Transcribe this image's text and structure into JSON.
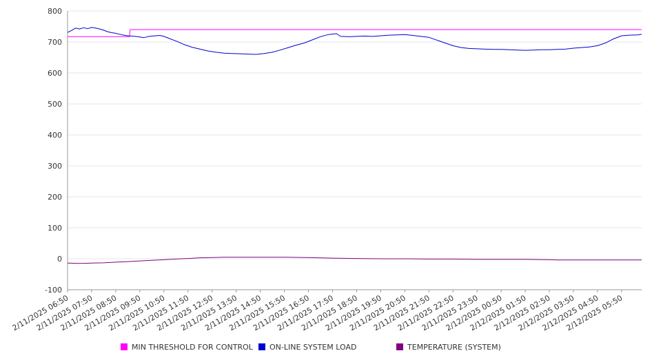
{
  "chart_data": {
    "type": "line",
    "ylim": [
      -100,
      800
    ],
    "y_ticks": [
      "-100",
      "0",
      "100",
      "200",
      "300",
      "400",
      "500",
      "600",
      "700",
      "800"
    ],
    "x_ticks": [
      "2/11/2025 06:50",
      "2/11/2025 07:50",
      "2/11/2025 08:50",
      "2/11/2025 09:50",
      "2/11/2025 10:50",
      "2/11/2025 11:50",
      "2/11/2025 12:50",
      "2/11/2025 13:50",
      "2/11/2025 14:50",
      "2/11/2025 15:50",
      "2/11/2025 16:50",
      "2/11/2025 17:50",
      "2/11/2025 18:50",
      "2/11/2025 19:50",
      "2/11/2025 20:50",
      "2/11/2025 21:50",
      "2/11/2025 22:50",
      "2/11/2025 23:50",
      "2/12/2025 00:50",
      "2/12/2025 01:50",
      "2/12/2025 02:50",
      "2/12/2025 03:50",
      "2/12/2025 04:50",
      "2/12/2025 05:50"
    ],
    "x_end": "2/12/2025 06:40",
    "grid": true,
    "legend_position": "bottom",
    "series": [
      {
        "name": "MIN THRESHOLD FOR CONTROL",
        "color": "#ff00ff",
        "x": [
          "2/11/2025 06:50",
          "2/11/2025 09:24",
          "2/11/2025 09:26",
          "2/12/2025 06:40"
        ],
        "y": [
          717,
          717,
          740,
          740
        ]
      },
      {
        "name": "ON-LINE SYSTEM LOAD",
        "color": "#0000cc",
        "x": [
          "2/11/2025 06:50",
          "2/11/2025 07:00",
          "2/11/2025 07:10",
          "2/11/2025 07:20",
          "2/11/2025 07:30",
          "2/11/2025 07:40",
          "2/11/2025 07:50",
          "2/11/2025 08:00",
          "2/11/2025 08:10",
          "2/11/2025 08:20",
          "2/11/2025 08:30",
          "2/11/2025 08:40",
          "2/11/2025 08:50",
          "2/11/2025 09:00",
          "2/11/2025 09:10",
          "2/11/2025 09:20",
          "2/11/2025 09:30",
          "2/11/2025 09:40",
          "2/11/2025 09:50",
          "2/11/2025 10:00",
          "2/11/2025 10:10",
          "2/11/2025 10:20",
          "2/11/2025 10:30",
          "2/11/2025 10:40",
          "2/11/2025 10:50",
          "2/11/2025 11:00",
          "2/11/2025 11:20",
          "2/11/2025 11:40",
          "2/11/2025 12:00",
          "2/11/2025 12:20",
          "2/11/2025 12:40",
          "2/11/2025 13:00",
          "2/11/2025 13:20",
          "2/11/2025 13:40",
          "2/11/2025 14:00",
          "2/11/2025 14:20",
          "2/11/2025 14:40",
          "2/11/2025 15:00",
          "2/11/2025 15:20",
          "2/11/2025 15:40",
          "2/11/2025 16:00",
          "2/11/2025 16:20",
          "2/11/2025 16:40",
          "2/11/2025 17:00",
          "2/11/2025 17:20",
          "2/11/2025 17:40",
          "2/11/2025 18:00",
          "2/11/2025 18:10",
          "2/11/2025 18:30",
          "2/11/2025 18:50",
          "2/11/2025 19:10",
          "2/11/2025 19:30",
          "2/11/2025 19:50",
          "2/11/2025 20:10",
          "2/11/2025 20:30",
          "2/11/2025 20:50",
          "2/11/2025 21:10",
          "2/11/2025 21:30",
          "2/11/2025 21:50",
          "2/11/2025 22:10",
          "2/11/2025 22:30",
          "2/11/2025 22:50",
          "2/11/2025 23:10",
          "2/11/2025 23:30",
          "2/11/2025 23:50",
          "2/12/2025 00:10",
          "2/12/2025 00:30",
          "2/12/2025 00:50",
          "2/12/2025 01:10",
          "2/12/2025 01:30",
          "2/12/2025 01:50",
          "2/12/2025 02:10",
          "2/12/2025 02:30",
          "2/12/2025 02:50",
          "2/12/2025 03:10",
          "2/12/2025 03:30",
          "2/12/2025 03:50",
          "2/12/2025 04:10",
          "2/12/2025 04:30",
          "2/12/2025 04:50",
          "2/12/2025 05:10",
          "2/12/2025 05:30",
          "2/12/2025 05:50",
          "2/12/2025 06:10",
          "2/12/2025 06:30",
          "2/12/2025 06:40"
        ],
        "y": [
          731,
          737,
          745,
          742,
          746,
          743,
          747,
          745,
          742,
          738,
          733,
          730,
          728,
          725,
          722,
          720,
          719,
          718,
          716,
          714,
          717,
          719,
          720,
          721,
          718,
          713,
          703,
          692,
          683,
          677,
          671,
          667,
          664,
          663,
          662,
          661,
          660,
          663,
          667,
          674,
          682,
          690,
          697,
          707,
          717,
          724,
          727,
          718,
          717,
          718,
          719,
          718,
          720,
          722,
          723,
          724,
          721,
          718,
          715,
          706,
          697,
          688,
          682,
          679,
          678,
          677,
          676,
          676,
          675,
          674,
          673,
          674,
          675,
          675,
          676,
          677,
          680,
          682,
          684,
          688,
          697,
          710,
          720,
          722,
          723,
          725
        ]
      },
      {
        "name": "TEMPERATURE (SYSTEM)",
        "color": "#800080",
        "x": [
          "2/11/2025 06:50",
          "2/11/2025 07:20",
          "2/11/2025 07:50",
          "2/11/2025 08:20",
          "2/11/2025 08:50",
          "2/11/2025 09:20",
          "2/11/2025 09:50",
          "2/11/2025 10:20",
          "2/11/2025 10:50",
          "2/11/2025 11:20",
          "2/11/2025 11:50",
          "2/11/2025 12:20",
          "2/11/2025 12:50",
          "2/11/2025 13:20",
          "2/11/2025 13:50",
          "2/11/2025 14:50",
          "2/11/2025 15:50",
          "2/11/2025 16:50",
          "2/11/2025 17:50",
          "2/11/2025 18:50",
          "2/11/2025 19:50",
          "2/11/2025 20:50",
          "2/11/2025 21:50",
          "2/11/2025 22:50",
          "2/11/2025 23:50",
          "2/12/2025 00:50",
          "2/12/2025 01:50",
          "2/12/2025 02:50",
          "2/12/2025 03:10",
          "2/12/2025 03:50",
          "2/12/2025 04:50",
          "2/12/2025 05:50",
          "2/12/2025 06:40"
        ],
        "y": [
          -14,
          -15,
          -14,
          -13,
          -11,
          -9,
          -7,
          -5,
          -3,
          -1,
          1,
          3,
          4,
          5,
          5,
          5,
          5,
          4,
          2,
          1,
          0,
          0,
          -1,
          -1,
          -2,
          -2,
          -2,
          -3,
          -4,
          -4,
          -4,
          -4,
          -4
        ]
      }
    ]
  }
}
